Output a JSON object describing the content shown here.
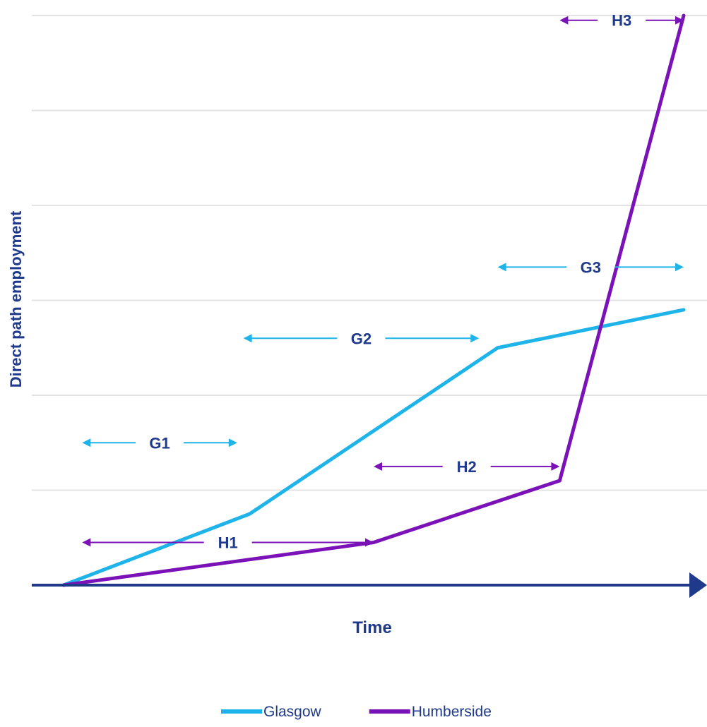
{
  "chart_data": {
    "type": "line",
    "xlabel": "Time",
    "ylabel": "Direct path employment",
    "xlim": [
      0,
      10
    ],
    "ylim": [
      0,
      6
    ],
    "grid": true,
    "legend_position": "bottom",
    "series": [
      {
        "name": "Glasgow",
        "color": "#1EB4EA",
        "points": [
          [
            0,
            0
          ],
          [
            3,
            0.75
          ],
          [
            7,
            2.5
          ],
          [
            10,
            2.9
          ]
        ]
      },
      {
        "name": "Humberside",
        "color": "#7A12B8",
        "points": [
          [
            0,
            0
          ],
          [
            5,
            0.45
          ],
          [
            8,
            1.1
          ],
          [
            10,
            6.0
          ]
        ]
      }
    ],
    "annotations": [
      {
        "label": "G1",
        "series": "Glasgow",
        "x_start": 0.3,
        "x_end": 2.8,
        "y": 1.5
      },
      {
        "label": "G2",
        "series": "Glasgow",
        "x_start": 2.9,
        "x_end": 6.7,
        "y": 2.6
      },
      {
        "label": "G3",
        "series": "Glasgow",
        "x_start": 7.0,
        "x_end": 10.0,
        "y": 3.35
      },
      {
        "label": "H1",
        "series": "Humberside",
        "x_start": 0.3,
        "x_end": 5.0,
        "y": 0.45
      },
      {
        "label": "H2",
        "series": "Humberside",
        "x_start": 5.0,
        "x_end": 8.0,
        "y": 1.25
      },
      {
        "label": "H3",
        "series": "Humberside",
        "x_start": 8.0,
        "x_end": 10.0,
        "y": 5.95
      }
    ]
  }
}
